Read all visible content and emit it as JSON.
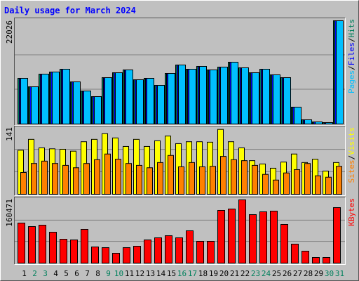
{
  "title": "Daily usage for March 2024",
  "separator": "/",
  "categories": [
    "1",
    "2",
    "3",
    "4",
    "5",
    "6",
    "7",
    "8",
    "9",
    "10",
    "11",
    "12",
    "13",
    "14",
    "15",
    "16",
    "17",
    "18",
    "19",
    "20",
    "21",
    "22",
    "23",
    "24",
    "25",
    "26",
    "27",
    "28",
    "29",
    "30",
    "31"
  ],
  "category_colors": [
    "#000000",
    "#00805c",
    "#00805c",
    "#000000",
    "#000000",
    "#000000",
    "#000000",
    "#000000",
    "#00805c",
    "#00805c",
    "#000000",
    "#000000",
    "#000000",
    "#000000",
    "#000000",
    "#00805c",
    "#00805c",
    "#000000",
    "#000000",
    "#000000",
    "#000000",
    "#000000",
    "#00805c",
    "#00805c",
    "#000000",
    "#000000",
    "#000000",
    "#000000",
    "#000000",
    "#00805c",
    "#00805c"
  ],
  "chart_data": [
    {
      "type": "bar",
      "ylim": [
        0,
        22026
      ],
      "yticks": [
        22026
      ],
      "series": [
        {
          "name": "Hits",
          "color": "#00805c",
          "values": [
            9739,
            7941,
            10638,
            11088,
            11687,
            8990,
            7042,
            5844,
            9889,
            10938,
            11537,
            9440,
            9739,
            8241,
            10788,
            12586,
            11687,
            12286,
            11537,
            12137,
            13185,
            11987,
            10938,
            11687,
            10488,
            9889,
            3596,
            899,
            450,
            300,
            22026
          ]
        },
        {
          "name": "Files",
          "color": "#0000ff",
          "values": [
            9739,
            7941,
            10638,
            11088,
            11687,
            8990,
            7042,
            5844,
            9889,
            10938,
            11537,
            9440,
            9739,
            8241,
            10788,
            12586,
            11687,
            12286,
            11537,
            12137,
            13185,
            11987,
            10938,
            11687,
            10488,
            9889,
            3596,
            899,
            450,
            300,
            22026
          ]
        },
        {
          "name": "Pages",
          "color": "#00c0ff",
          "values": [
            9739,
            7941,
            10638,
            11088,
            11687,
            8990,
            7042,
            5844,
            9889,
            10938,
            11537,
            9440,
            9739,
            8241,
            10788,
            12586,
            11687,
            12286,
            11537,
            12137,
            13185,
            11987,
            10938,
            11687,
            10488,
            9889,
            3596,
            899,
            450,
            300,
            22026
          ]
        }
      ]
    },
    {
      "type": "bar",
      "ylim": [
        0,
        141
      ],
      "yticks": [
        141
      ],
      "series": [
        {
          "name": "Visits",
          "color": "#ffff00",
          "values": [
            93,
            116,
            98,
            96,
            95,
            91,
            111,
            116,
            128,
            119,
            101,
            116,
            101,
            113,
            123,
            107,
            111,
            111,
            110,
            137,
            111,
            98,
            71,
            64,
            55,
            68,
            85,
            67,
            74,
            49,
            67
          ]
        },
        {
          "name": "Sites",
          "color": "#ff8000",
          "values": [
            46,
            65,
            70,
            65,
            61,
            56,
            65,
            73,
            85,
            74,
            65,
            61,
            56,
            67,
            82,
            58,
            67,
            58,
            59,
            80,
            73,
            71,
            61,
            42,
            30,
            45,
            52,
            65,
            39,
            36,
            59
          ]
        }
      ]
    },
    {
      "type": "bar",
      "ylim": [
        0,
        160471
      ],
      "yticks": [
        160471
      ],
      "series": [
        {
          "name": "KBytes",
          "color": "#ff0000",
          "values": [
            100514,
            91697,
            95224,
            77590,
            59956,
            58192,
            84643,
            40558,
            38795,
            24688,
            38795,
            42322,
            58192,
            63482,
            68773,
            63482,
            81116,
            54665,
            54665,
            132255,
            135782,
            158706,
            121675,
            128728,
            130492,
            96987,
            47612,
            29978,
            14107,
            14107,
            139309
          ]
        }
      ]
    }
  ]
}
